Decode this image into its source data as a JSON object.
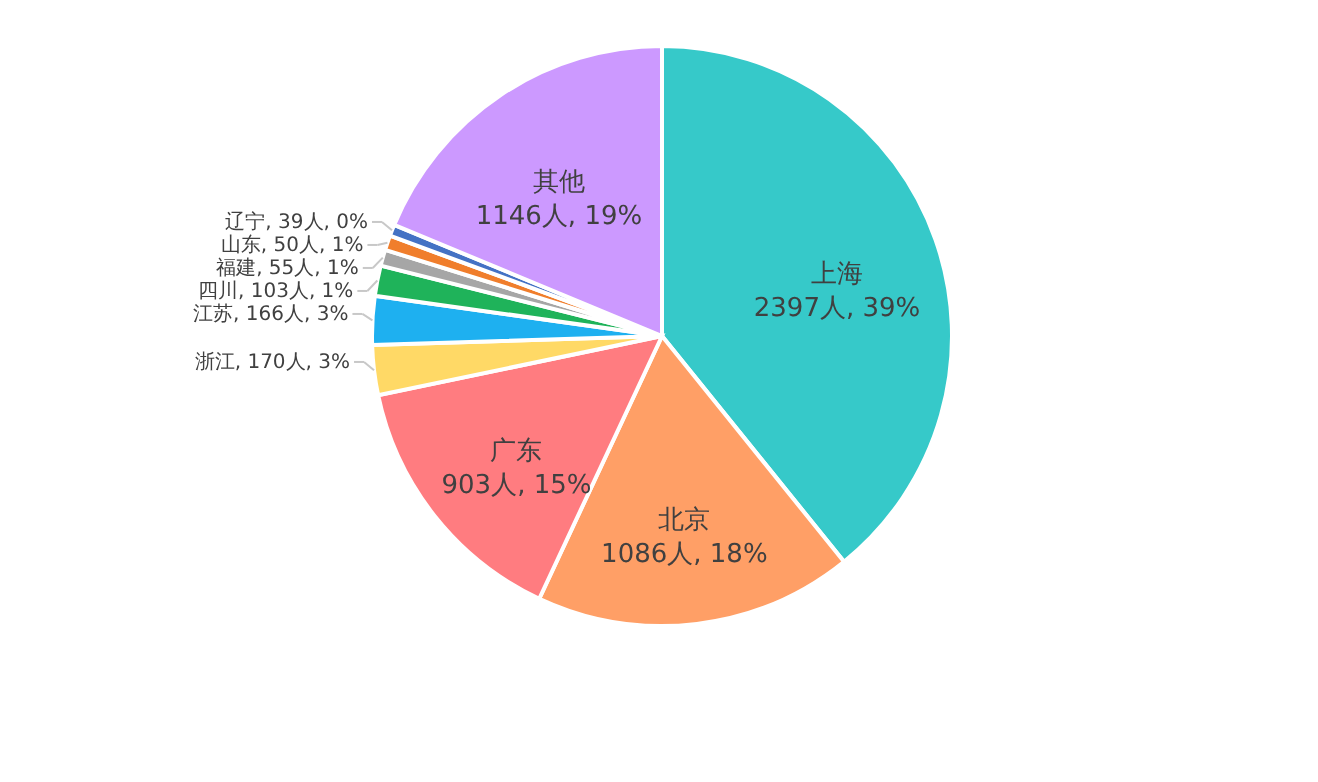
{
  "chart_data": {
    "type": "pie",
    "categories": [
      "上海",
      "北京",
      "广东",
      "浙江",
      "江苏",
      "四川",
      "福建",
      "山东",
      "辽宁",
      "其他"
    ],
    "values": [
      2397,
      1086,
      903,
      170,
      166,
      103,
      55,
      50,
      39,
      1146
    ],
    "value_labels": [
      "2397人, 39%",
      "1086人, 18%",
      "903人, 15%",
      "170人, 3%",
      "166人, 3%",
      "103人, 1%",
      "55人, 1%",
      "50人, 1%",
      "39人, 0%",
      "1146人, 19%"
    ],
    "colors": [
      "#36c9c9",
      "#ff9f66",
      "#ff7c80",
      "#ffd966",
      "#1eb0f0",
      "#1fb35a",
      "#a6a6a6",
      "#f07e2c",
      "#4472c4",
      "#cc99ff"
    ]
  }
}
